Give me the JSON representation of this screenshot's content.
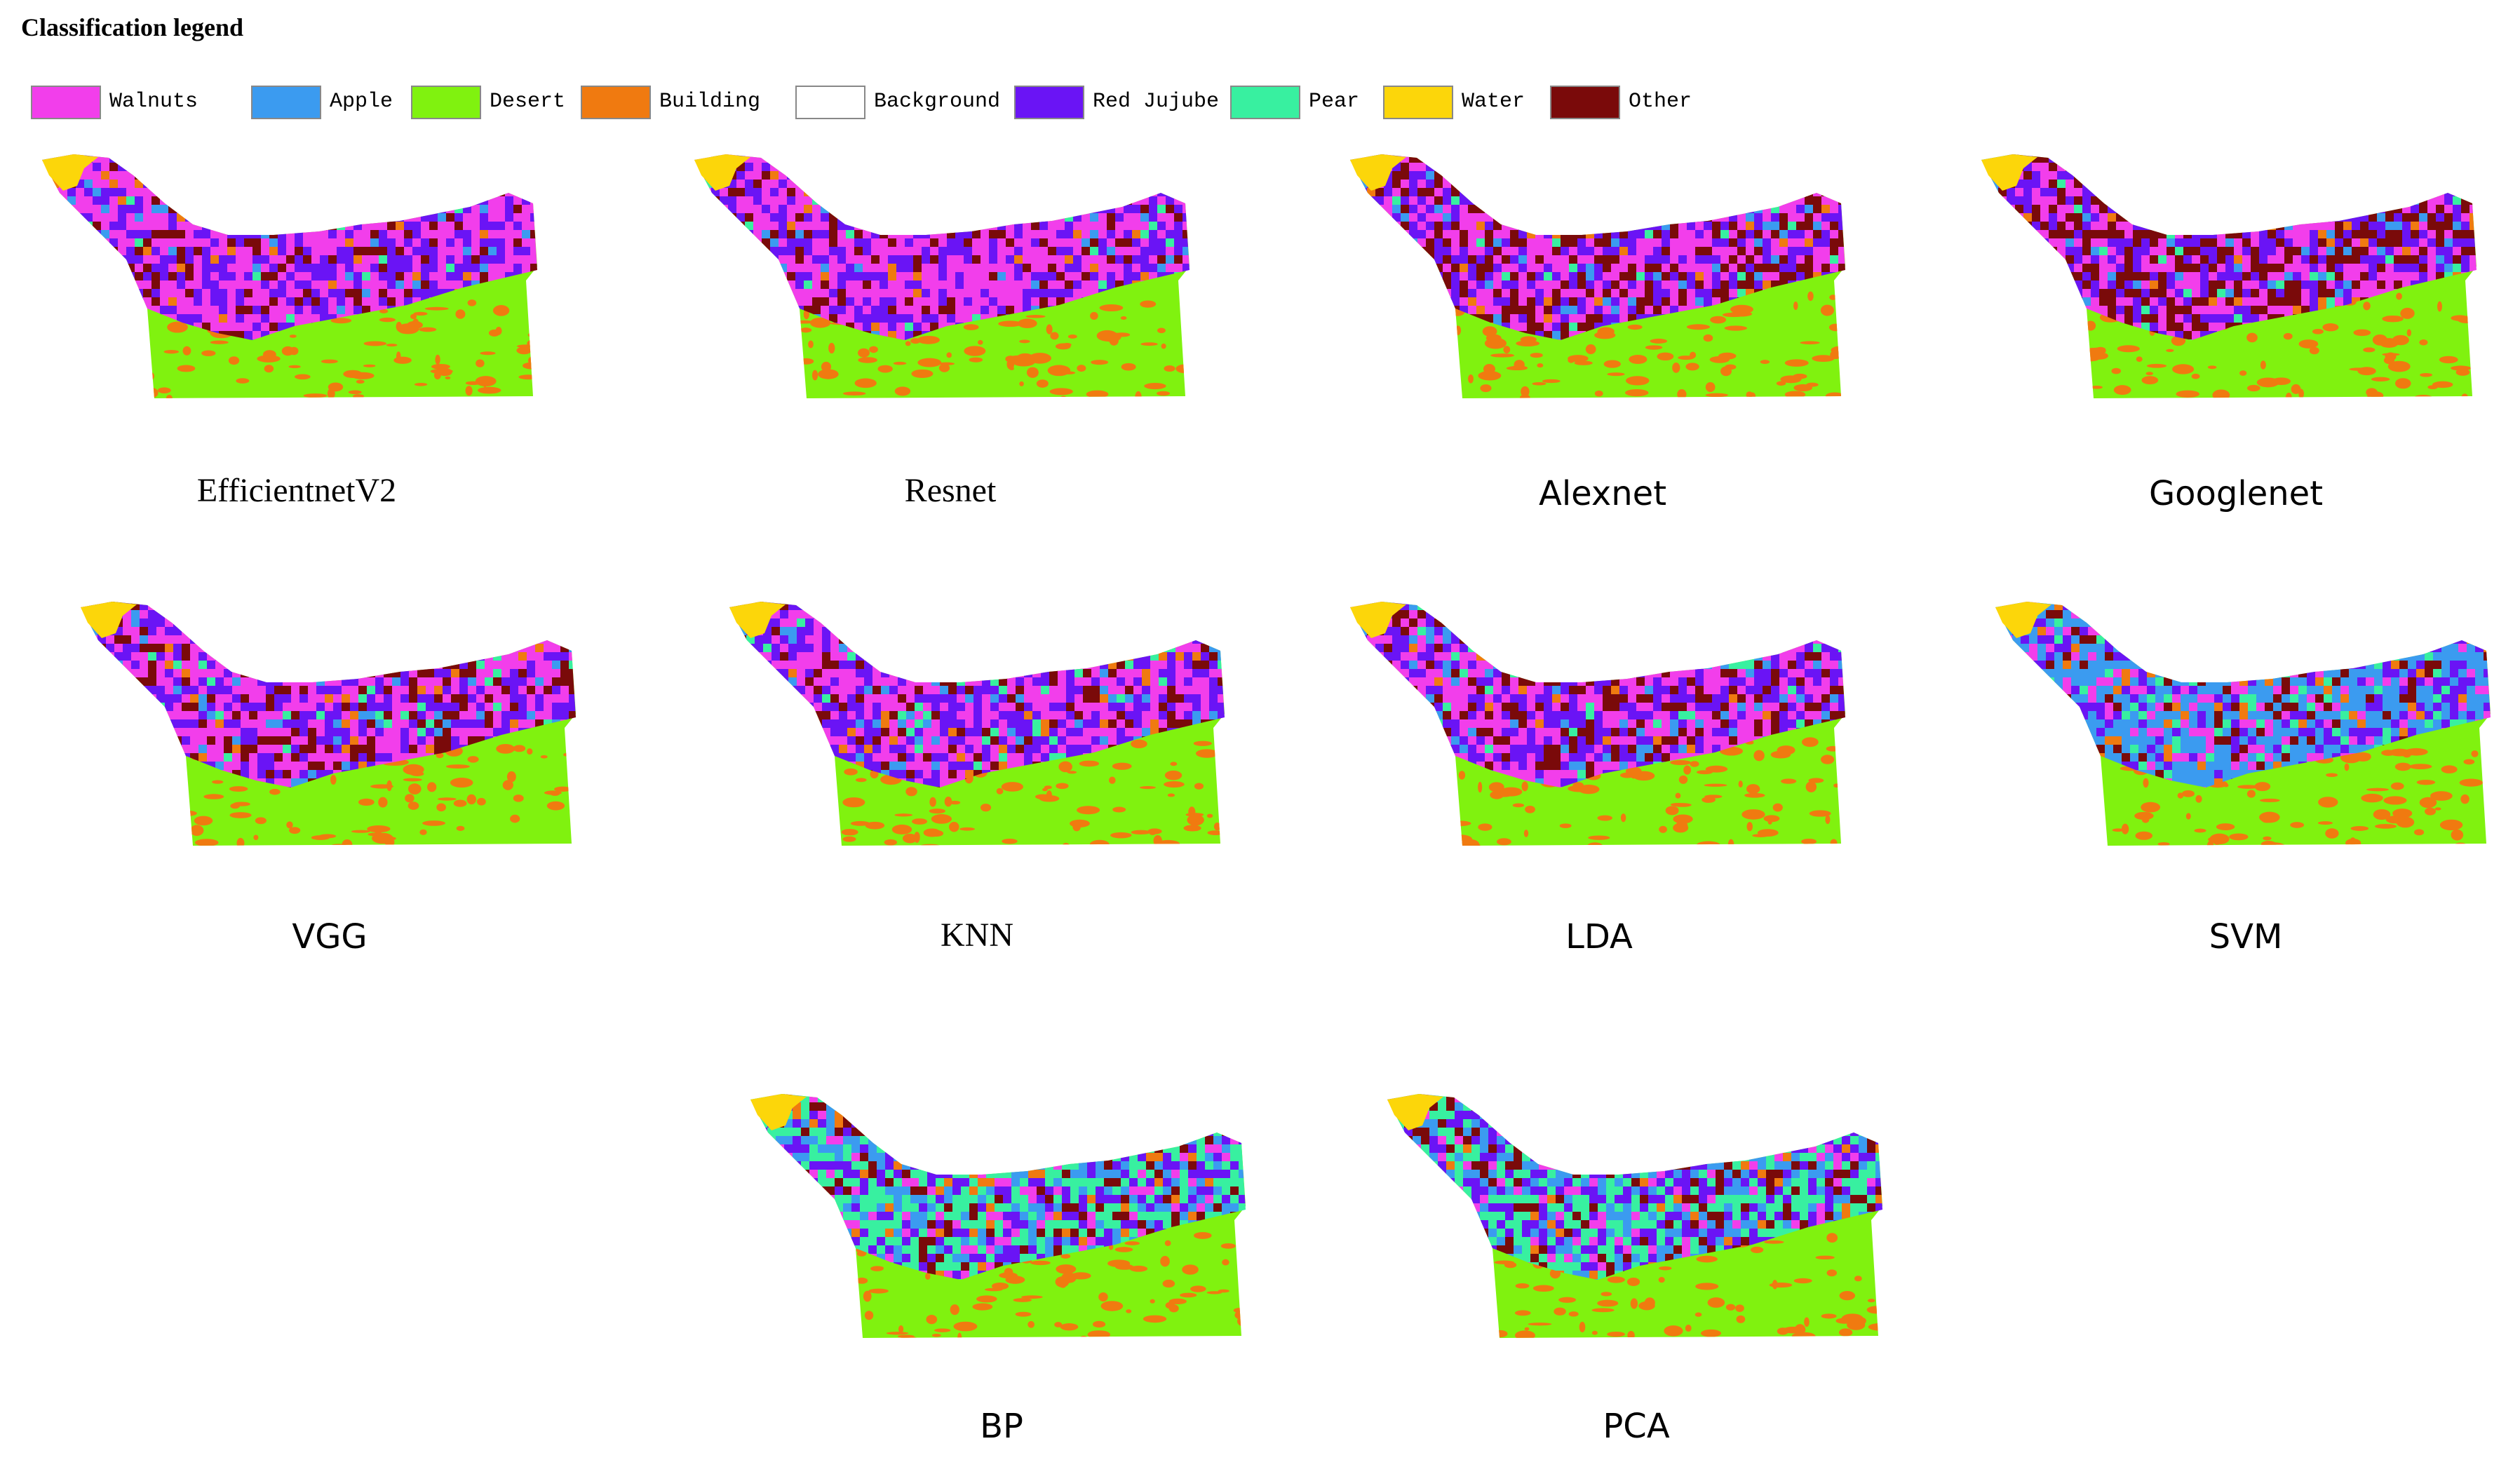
{
  "legend": {
    "title": "Classification legend",
    "items": [
      {
        "label": "Walnuts",
        "color": "#F23EEB"
      },
      {
        "label": "Apple",
        "color": "#3B9BF0"
      },
      {
        "label": "Desert",
        "color": "#80F20F"
      },
      {
        "label": "Building",
        "color": "#F07A10"
      },
      {
        "label": "Background",
        "color": "#FFFFFF"
      },
      {
        "label": "Red Jujube",
        "color": "#6A14F5"
      },
      {
        "label": "Pear",
        "color": "#38F0A0"
      },
      {
        "label": "Water",
        "color": "#FCD60A"
      },
      {
        "label": "Other",
        "color": "#7A0A0A"
      }
    ]
  },
  "maps": [
    {
      "caption": "EfficientnetV2",
      "mix": {
        "walnut": 0.45,
        "jujube": 0.35,
        "other": 0.12,
        "apple": 0.03,
        "pear": 0.02,
        "building": 0.03
      }
    },
    {
      "caption": "Resnet",
      "mix": {
        "walnut": 0.45,
        "jujube": 0.35,
        "other": 0.12,
        "apple": 0.03,
        "pear": 0.02,
        "building": 0.03
      }
    },
    {
      "caption": "Alexnet",
      "mix": {
        "walnut": 0.32,
        "jujube": 0.28,
        "other": 0.3,
        "apple": 0.05,
        "pear": 0.02,
        "building": 0.03
      }
    },
    {
      "caption": "Googlenet",
      "mix": {
        "walnut": 0.3,
        "jujube": 0.25,
        "other": 0.35,
        "apple": 0.05,
        "pear": 0.02,
        "building": 0.03
      }
    },
    {
      "caption": "VGG",
      "mix": {
        "walnut": 0.4,
        "jujube": 0.3,
        "other": 0.17,
        "apple": 0.05,
        "pear": 0.05,
        "building": 0.03
      }
    },
    {
      "caption": "KNN",
      "mix": {
        "walnut": 0.38,
        "jujube": 0.32,
        "other": 0.15,
        "apple": 0.07,
        "pear": 0.05,
        "building": 0.03
      }
    },
    {
      "caption": "LDA",
      "mix": {
        "walnut": 0.38,
        "jujube": 0.3,
        "other": 0.17,
        "apple": 0.08,
        "pear": 0.04,
        "building": 0.03
      }
    },
    {
      "caption": "SVM",
      "mix": {
        "walnut": 0.12,
        "jujube": 0.2,
        "other": 0.1,
        "apple": 0.45,
        "pear": 0.08,
        "building": 0.05
      }
    },
    {
      "caption": "BP",
      "mix": {
        "walnut": 0.1,
        "jujube": 0.22,
        "other": 0.13,
        "apple": 0.2,
        "pear": 0.3,
        "building": 0.05
      }
    },
    {
      "caption": "PCA",
      "mix": {
        "walnut": 0.1,
        "jujube": 0.22,
        "other": 0.13,
        "apple": 0.2,
        "pear": 0.3,
        "building": 0.05
      }
    }
  ]
}
